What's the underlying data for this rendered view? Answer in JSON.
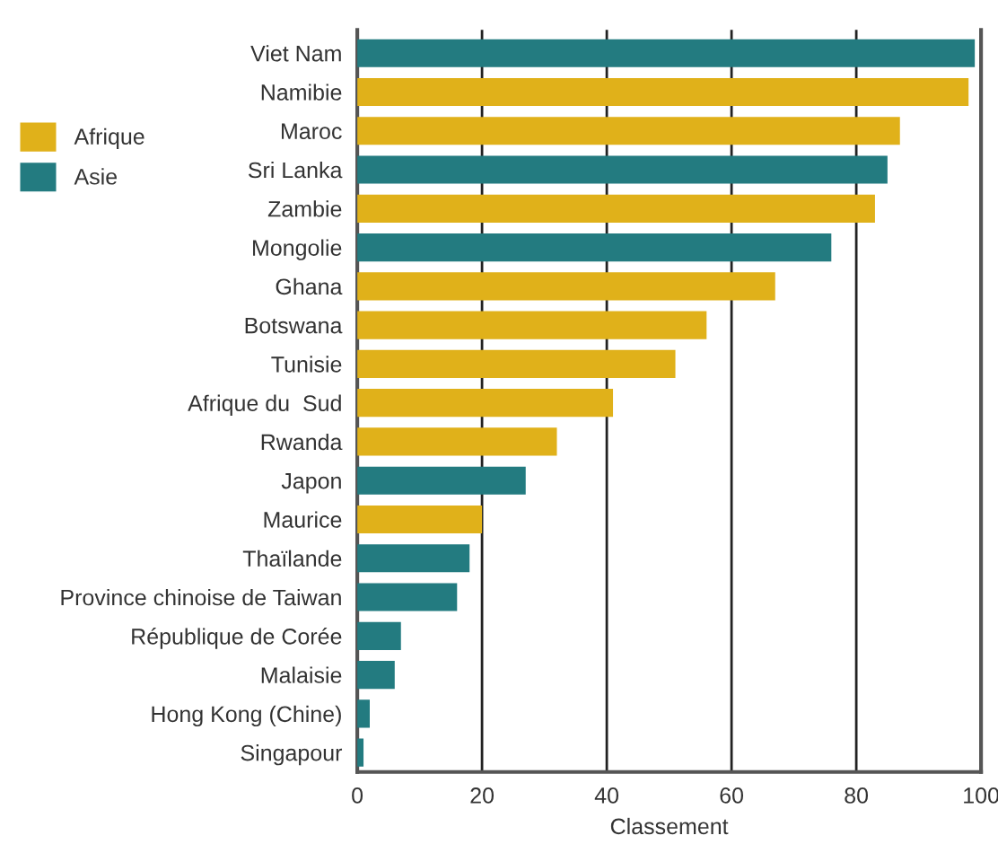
{
  "chart_data": {
    "type": "bar",
    "orientation": "horizontal",
    "xlabel": "Classement",
    "categories": [
      "Viet Nam",
      "Namibie",
      "Maroc",
      "Sri Lanka",
      "Zambie",
      "Mongolie",
      "Ghana",
      "Botswana",
      "Tunisie",
      "Afrique du  Sud",
      "Rwanda",
      "Japon",
      "Maurice",
      "Thaïlande",
      "Province chinoise de Taiwan",
      "République de Corée",
      "Malaisie",
      "Hong Kong (Chine)",
      "Singapour"
    ],
    "series": [
      {
        "name": "Afrique",
        "color": "#e0b11a",
        "values": [
          null,
          98,
          87,
          null,
          83,
          null,
          67,
          56,
          51,
          41,
          32,
          null,
          20,
          null,
          null,
          null,
          null,
          null,
          null
        ]
      },
      {
        "name": "Asie",
        "color": "#237b80",
        "values": [
          99,
          null,
          null,
          85,
          null,
          76,
          null,
          null,
          null,
          null,
          null,
          27,
          null,
          18,
          16,
          7,
          6,
          2,
          1
        ]
      }
    ],
    "xlim": [
      0,
      100
    ],
    "xticks": [
      0,
      20,
      40,
      60,
      80,
      100
    ],
    "grid": "x",
    "legend": "left"
  }
}
